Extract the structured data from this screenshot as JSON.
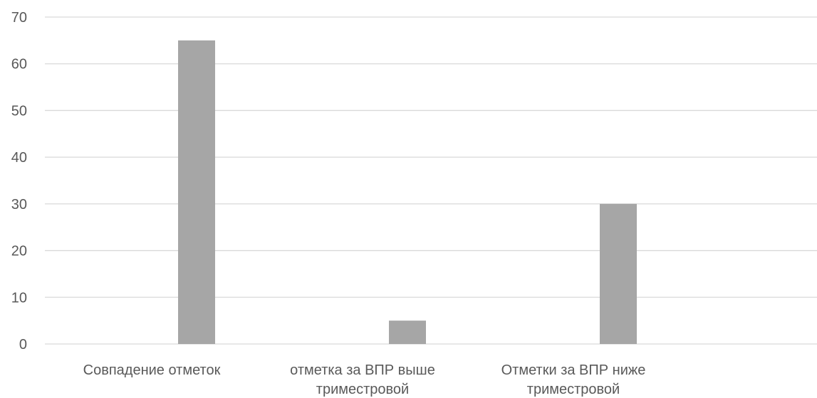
{
  "chart_data": {
    "type": "bar",
    "categories": [
      [
        "Совпадение отметок"
      ],
      [
        "отметка за ВПР выше",
        "триместровой"
      ],
      [
        "Отметки за ВПР ниже",
        "триместровой"
      ]
    ],
    "values": [
      65,
      5,
      30
    ],
    "ylim": [
      0,
      70
    ],
    "yticks": [
      0,
      10,
      20,
      30,
      40,
      50,
      60,
      70
    ],
    "grid": true,
    "bar_color": "#a6a6a6",
    "grid_color": "#d9d9d9",
    "text_color": "#595959"
  }
}
